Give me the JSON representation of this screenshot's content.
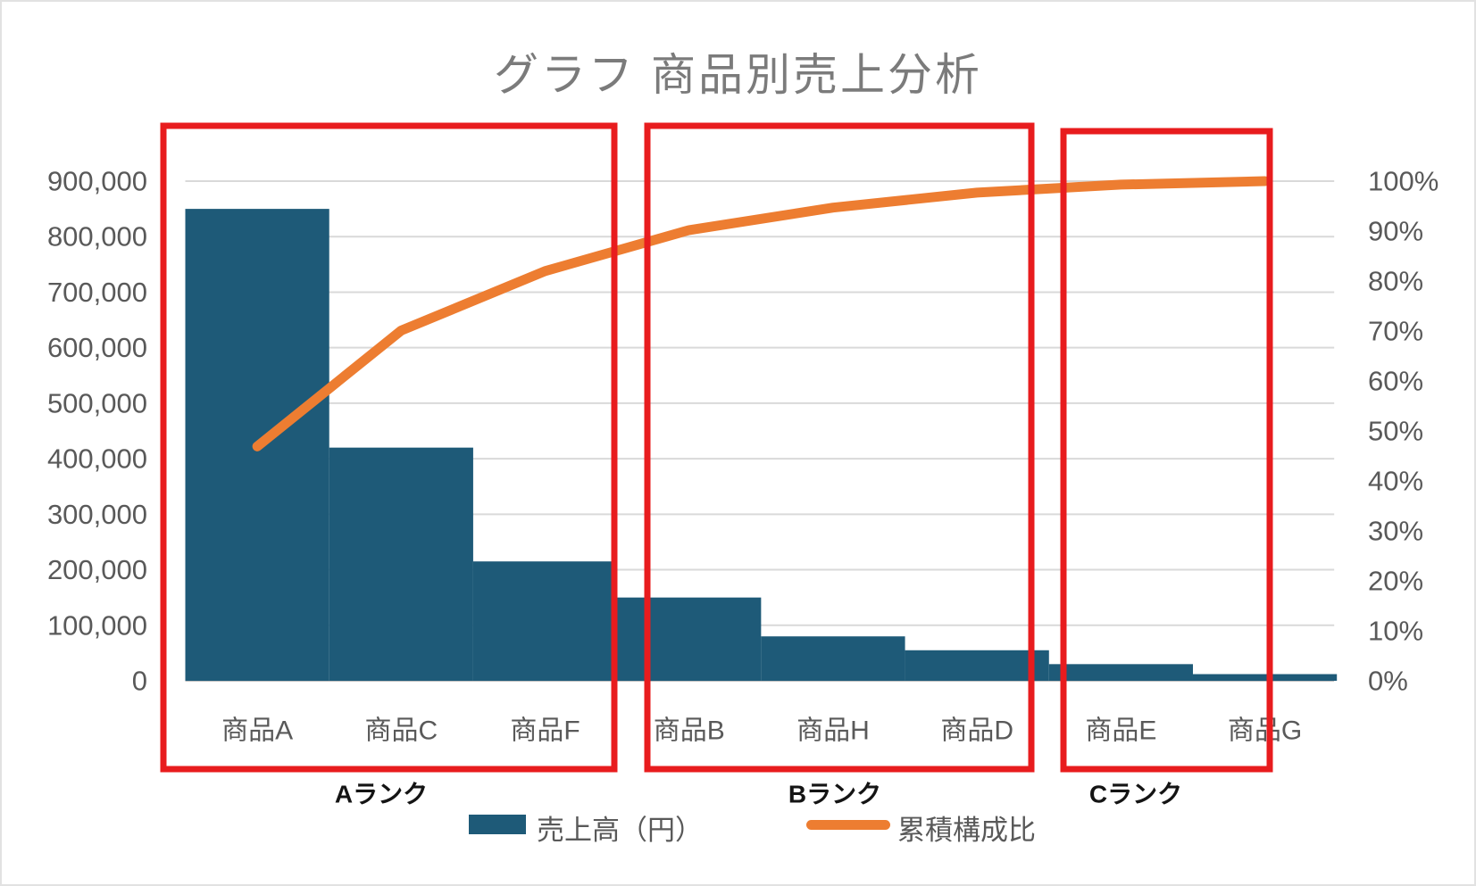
{
  "title": "グラフ 商品別売上分析",
  "legend": {
    "bar_label": "売上高（円）",
    "line_label": "累積構成比"
  },
  "chart_data": {
    "type": "pareto (bar + line combo)",
    "title": "グラフ 商品別売上分析",
    "categories": [
      "商品A",
      "商品C",
      "商品F",
      "商品B",
      "商品H",
      "商品D",
      "商品E",
      "商品G"
    ],
    "series": [
      {
        "name": "売上高（円）",
        "chart": "bar",
        "axis": "left",
        "color": "#1E5A78",
        "values": [
          850000,
          420000,
          215000,
          150000,
          80000,
          55000,
          30000,
          12000
        ]
      },
      {
        "name": "累積構成比",
        "chart": "line",
        "axis": "right",
        "color": "#ED7D31",
        "cumulative_pct": [
          46.9,
          70.1,
          82.0,
          90.2,
          94.7,
          97.7,
          99.3,
          100.0
        ]
      }
    ],
    "left_axis": {
      "min": 0,
      "max": 900000,
      "tick_step": 100000,
      "ticks": [
        "0",
        "100,000",
        "200,000",
        "300,000",
        "400,000",
        "500,000",
        "600,000",
        "700,000",
        "800,000",
        "900,000"
      ]
    },
    "right_axis": {
      "min": "0%",
      "max": "100%",
      "tick_step": "10%",
      "ticks": [
        "0%",
        "10%",
        "20%",
        "30%",
        "40%",
        "50%",
        "60%",
        "70%",
        "80%",
        "90%",
        "100%"
      ]
    },
    "gridlines": "horizontal",
    "legend_position": "bottom"
  },
  "annotations": {
    "rank_boxes": [
      {
        "label": "Aランク",
        "categories": [
          "商品A",
          "商品C",
          "商品F"
        ]
      },
      {
        "label": "Bランク",
        "categories": [
          "商品B",
          "商品H",
          "商品D"
        ]
      },
      {
        "label": "Cランク",
        "categories": [
          "商品E",
          "商品G"
        ]
      }
    ],
    "box_color": "#E81C1E"
  },
  "colors": {
    "bar": "#1E5A78",
    "line": "#ED7D31",
    "grid": "#D9D9D9",
    "baseline": "#C0C0C0",
    "axis_text": "#595959",
    "title_text": "#7B7B7B",
    "rank_text": "#141414",
    "annotation_red": "#E81C1E"
  }
}
